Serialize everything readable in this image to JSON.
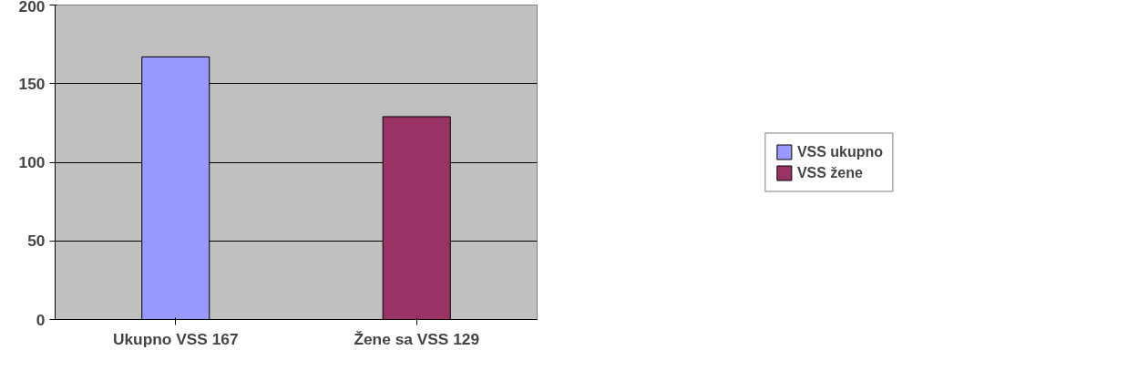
{
  "chart_data": {
    "type": "bar",
    "categories": [
      "Ukupno VSS 167",
      "Žene sa VSS 129"
    ],
    "series": [
      {
        "name": "VSS ukupno",
        "color": "#9999ff",
        "values": [
          167,
          null
        ]
      },
      {
        "name": "VSS žene",
        "color": "#993366",
        "values": [
          null,
          129
        ]
      }
    ],
    "ylim": [
      0,
      200
    ],
    "yticks": [
      0,
      50,
      100,
      150,
      200
    ],
    "grid": "y",
    "legend": "right"
  }
}
